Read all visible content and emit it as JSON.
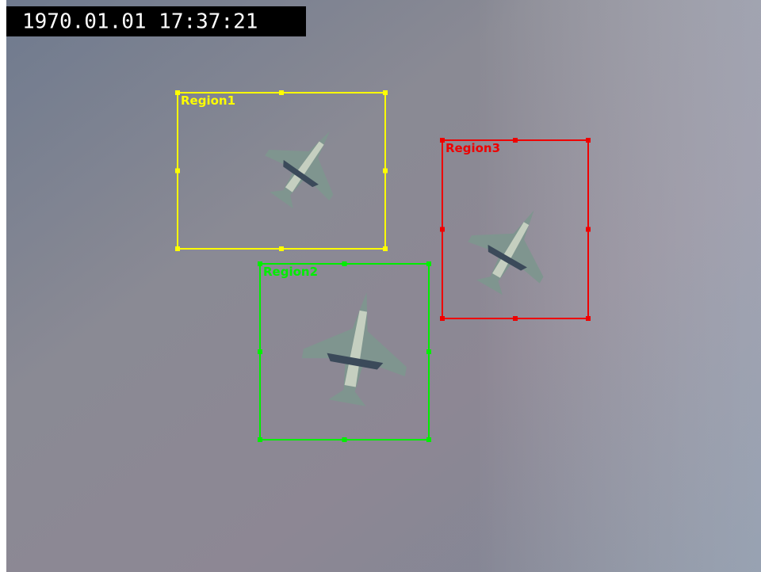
{
  "timestamp": "1970.01.01 17:37:21",
  "regions": [
    {
      "label": "Region1"
    },
    {
      "label": "Region2"
    },
    {
      "label": "Region3"
    }
  ]
}
